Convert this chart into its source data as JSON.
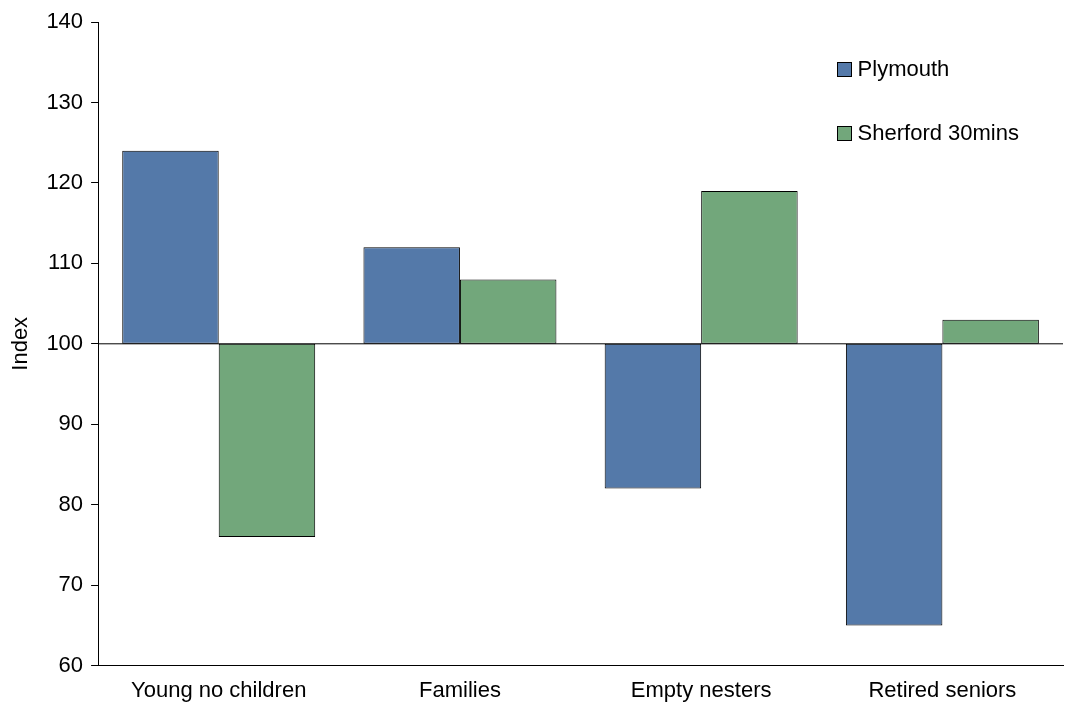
{
  "chart_data": {
    "type": "bar",
    "ylabel": "Index",
    "categories": [
      "Young no children",
      "Families",
      "Empty nesters",
      "Retired seniors"
    ],
    "series": [
      {
        "name": "Plymouth",
        "color": "#5479a9",
        "base": [
          100,
          100,
          100,
          100
        ],
        "values": [
          24,
          12,
          -18,
          -35
        ]
      },
      {
        "name": "Sherford 30mins",
        "color": "#72a77b",
        "base": [
          100,
          100,
          100,
          100
        ],
        "values": [
          -24,
          8,
          19,
          3
        ]
      }
    ],
    "ylim": [
      60,
      140
    ],
    "yticks": [
      60,
      70,
      80,
      90,
      100,
      110,
      120,
      130,
      140
    ],
    "grid": false,
    "legend": "top right",
    "ref_lines": [
      {
        "axis": "y",
        "value": 100,
        "color": "#000000"
      }
    ]
  }
}
